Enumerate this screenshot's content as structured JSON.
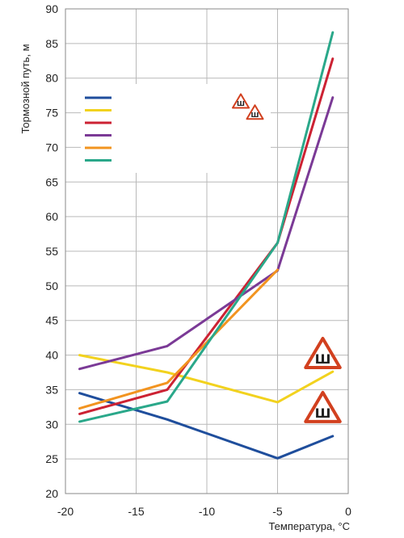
{
  "chart_data": {
    "type": "line",
    "title": "",
    "xlabel": "Температура, °С",
    "ylabel": "Тормозной путь, м",
    "xlim": [
      -20,
      0
    ],
    "ylim": [
      20,
      90
    ],
    "x_ticks": [
      -20,
      -15,
      -10,
      -5,
      0
    ],
    "y_ticks": [
      20,
      25,
      30,
      35,
      40,
      45,
      50,
      55,
      60,
      65,
      70,
      75,
      80,
      85,
      90
    ],
    "grid": true,
    "legend_position": "top-left",
    "series": [
      {
        "color": "#1f4e9c",
        "x": [
          -19,
          -12.8,
          -5,
          -1.1
        ],
        "y": [
          34.5,
          30.7,
          25.1,
          28.3
        ]
      },
      {
        "color": "#f2d21e",
        "x": [
          -19,
          -12.8,
          -5,
          -1.1
        ],
        "y": [
          40.0,
          37.5,
          33.2,
          37.6
        ]
      },
      {
        "color": "#cc2233",
        "x": [
          -19,
          -12.8,
          -5,
          -1.1
        ],
        "y": [
          31.5,
          35.0,
          56.2,
          82.8
        ]
      },
      {
        "color": "#7b3a96",
        "x": [
          -19,
          -12.8,
          -5,
          -1.1
        ],
        "y": [
          38.0,
          41.3,
          52.2,
          77.2
        ]
      },
      {
        "color": "#f29420",
        "x": [
          -19,
          -12.8,
          -5
        ],
        "y": [
          32.3,
          36.0,
          52.3
        ]
      },
      {
        "color": "#2aa88a",
        "x": [
          -19,
          -12.8,
          -5,
          -1.1
        ],
        "y": [
          30.4,
          33.3,
          56.2,
          86.6
        ]
      }
    ],
    "sign_markers": [
      {
        "label": "Ш",
        "x": -1.8,
        "y": 40.3,
        "size": "large"
      },
      {
        "label": "Ш",
        "x": -1.8,
        "y": 32.5,
        "size": "large"
      },
      {
        "label": "Ш",
        "x": -7.6,
        "y": 76.7,
        "size": "small"
      },
      {
        "label": "Ш",
        "x": -6.6,
        "y": 75.1,
        "size": "small"
      }
    ]
  }
}
